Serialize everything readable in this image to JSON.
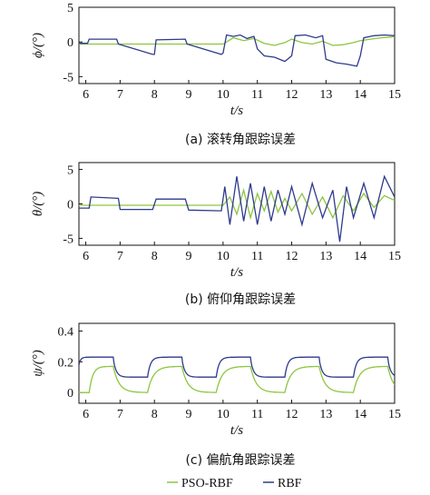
{
  "colors": {
    "pso_rbf": "#8dc63f",
    "rbf": "#2e3a8c",
    "axis": "#111111"
  },
  "legend": {
    "pso_rbf_label": "PSO-RBF",
    "rbf_label": "RBF"
  },
  "chart_data": [
    {
      "type": "line",
      "caption": "(a) 滚转角跟踪误差",
      "xlabel": "t/s",
      "ylabel": "ϕ/(°)",
      "xlim": [
        5.8,
        15
      ],
      "ylim": [
        -6,
        5
      ],
      "xticks": [
        6,
        7,
        8,
        9,
        10,
        11,
        12,
        13,
        14,
        15
      ],
      "yticks": [
        -5,
        0,
        5
      ],
      "series": [
        {
          "name": "PSO-RBF",
          "x": [
            5.8,
            6.8,
            7.0,
            8.0,
            9.0,
            10.0,
            10.3,
            10.6,
            10.9,
            11.2,
            11.5,
            11.8,
            12.0,
            12.3,
            12.6,
            12.9,
            13.2,
            13.5,
            13.8,
            14.0,
            14.3,
            14.6,
            14.9,
            15.0
          ],
          "y": [
            -0.3,
            -0.3,
            -0.3,
            -0.3,
            -0.3,
            -0.3,
            0.6,
            0.2,
            0.5,
            -0.2,
            -0.5,
            -0.1,
            0.4,
            -0.1,
            -0.3,
            0.1,
            -0.5,
            -0.4,
            -0.1,
            0.2,
            0.4,
            0.6,
            0.7,
            0.8
          ]
        },
        {
          "name": "RBF",
          "x": [
            5.8,
            6.05,
            6.1,
            6.9,
            6.95,
            7.95,
            8.0,
            8.05,
            8.9,
            8.95,
            9.95,
            10.0,
            10.1,
            10.3,
            10.5,
            10.7,
            10.9,
            11.0,
            11.2,
            11.5,
            11.8,
            12.0,
            12.1,
            12.4,
            12.7,
            12.9,
            13.0,
            13.3,
            13.6,
            13.9,
            14.0,
            14.1,
            14.4,
            14.7,
            15.0
          ],
          "y": [
            -0.2,
            -0.2,
            0.4,
            0.4,
            -0.3,
            -1.8,
            -1.8,
            0.3,
            0.4,
            -0.3,
            -1.8,
            -1.6,
            1.0,
            0.8,
            1.0,
            0.5,
            0.8,
            -1.0,
            -2.0,
            -2.2,
            -2.8,
            -2.0,
            0.9,
            1.0,
            0.6,
            0.9,
            -2.5,
            -3.0,
            -3.2,
            -3.5,
            -2.0,
            0.6,
            0.9,
            1.0,
            0.9
          ]
        }
      ]
    },
    {
      "type": "line",
      "caption": "(b) 俯仰角跟踪误差",
      "xlabel": "t/s",
      "ylabel": "θ/(°)",
      "xlim": [
        5.8,
        15
      ],
      "ylim": [
        -6,
        6
      ],
      "xticks": [
        6,
        7,
        8,
        9,
        10,
        11,
        12,
        13,
        14,
        15
      ],
      "yticks": [
        -5,
        0,
        5
      ],
      "series": [
        {
          "name": "PSO-RBF",
          "x": [
            5.8,
            7.0,
            8.0,
            9.0,
            10.0,
            10.2,
            10.4,
            10.6,
            10.8,
            11.0,
            11.2,
            11.4,
            11.6,
            11.8,
            12.0,
            12.3,
            12.6,
            12.9,
            13.2,
            13.5,
            13.8,
            14.1,
            14.4,
            14.7,
            15.0
          ],
          "y": [
            -0.2,
            -0.2,
            -0.2,
            -0.2,
            -0.2,
            1.0,
            -1.5,
            2.0,
            -2.0,
            1.5,
            -1.0,
            1.8,
            -1.2,
            0.8,
            -1.0,
            1.5,
            -1.5,
            1.0,
            -2.0,
            1.2,
            -1.0,
            1.5,
            -0.5,
            1.2,
            0.5
          ]
        },
        {
          "name": "RBF",
          "x": [
            5.8,
            6.1,
            6.15,
            6.95,
            7.0,
            7.95,
            8.05,
            8.9,
            9.0,
            9.95,
            10.05,
            10.2,
            10.4,
            10.6,
            10.8,
            11.0,
            11.2,
            11.4,
            11.6,
            11.8,
            12.0,
            12.3,
            12.6,
            12.9,
            13.2,
            13.4,
            13.6,
            13.8,
            14.1,
            14.4,
            14.7,
            15.0
          ],
          "y": [
            -0.6,
            -0.6,
            1.0,
            0.8,
            -0.8,
            -0.8,
            0.7,
            0.7,
            -0.9,
            -1.0,
            2.5,
            -3.0,
            4.0,
            -2.5,
            3.0,
            -3.0,
            2.5,
            -2.5,
            2.0,
            -1.5,
            2.5,
            -3.0,
            3.0,
            -2.0,
            2.0,
            -5.5,
            2.5,
            -2.0,
            3.0,
            -2.0,
            4.0,
            1.0
          ]
        }
      ]
    },
    {
      "type": "line",
      "caption": "(c) 偏航角跟踪误差",
      "xlabel": "t/s",
      "ylabel": "ψ/(°)",
      "xlim": [
        5.8,
        15
      ],
      "ylim": [
        -0.07,
        0.45
      ],
      "xticks": [
        6,
        7,
        8,
        9,
        10,
        11,
        12,
        13,
        14,
        15
      ],
      "yticks": [
        0,
        0.2,
        0.4
      ],
      "ytick_labels": [
        "0",
        "0.2",
        "0.4"
      ]
    }
  ]
}
